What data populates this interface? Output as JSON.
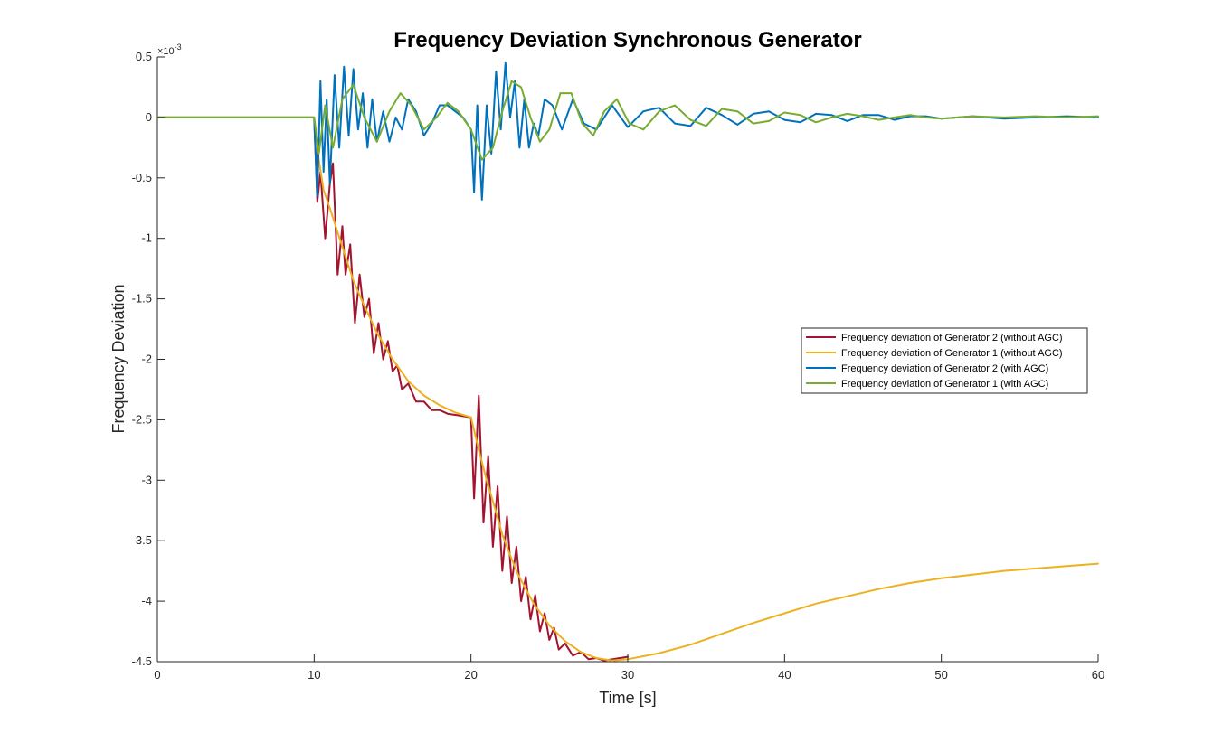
{
  "chart_data": {
    "type": "line",
    "title": "Frequency Deviation Synchronous Generator",
    "xlabel": "Time [s]",
    "ylabel": "Frequency Deviation",
    "y_multiplier": "×10",
    "y_multiplier_exp": "-3",
    "xlim": [
      0,
      60
    ],
    "ylim": [
      -4.5,
      0.5
    ],
    "x_ticks": [
      "0",
      "10",
      "20",
      "30",
      "40",
      "50",
      "60"
    ],
    "y_ticks": [
      "0.5",
      "0",
      "-0.5",
      "-1",
      "-1.5",
      "-2",
      "-2.5",
      "-3",
      "-3.5",
      "-4",
      "-4.5"
    ],
    "grid": false,
    "legend_position": "right",
    "series": [
      {
        "name": "Frequency deviation of Generator 2 (without AGC)",
        "color": "#A2142F",
        "x": [
          0,
          10,
          10.2,
          10.4,
          10.7,
          11.0,
          11.2,
          11.5,
          11.8,
          12.0,
          12.3,
          12.6,
          12.9,
          13.2,
          13.5,
          13.8,
          14.1,
          14.4,
          14.7,
          15.0,
          15.3,
          15.6,
          16.0,
          16.5,
          17.0,
          17.5,
          18.0,
          18.5,
          19.0,
          19.5,
          20.0,
          20.2,
          20.5,
          20.8,
          21.1,
          21.4,
          21.7,
          22.0,
          22.3,
          22.6,
          22.9,
          23.2,
          23.5,
          23.8,
          24.1,
          24.4,
          24.7,
          25.0,
          25.3,
          25.6,
          26.0,
          26.5,
          27.0,
          27.5,
          28.0,
          28.5,
          29.0,
          29.5,
          30.0
        ],
        "y": [
          0,
          0,
          -0.7,
          -0.45,
          -1.0,
          -0.55,
          -0.38,
          -1.3,
          -0.9,
          -1.3,
          -1.05,
          -1.7,
          -1.3,
          -1.65,
          -1.5,
          -1.95,
          -1.7,
          -2.0,
          -1.85,
          -2.1,
          -2.05,
          -2.25,
          -2.2,
          -2.35,
          -2.35,
          -2.42,
          -2.42,
          -2.45,
          -2.46,
          -2.47,
          -2.48,
          -3.15,
          -2.3,
          -3.35,
          -2.8,
          -3.55,
          -3.05,
          -3.75,
          -3.3,
          -3.85,
          -3.55,
          -4.0,
          -3.8,
          -4.15,
          -3.95,
          -4.25,
          -4.1,
          -4.32,
          -4.22,
          -4.4,
          -4.35,
          -4.45,
          -4.42,
          -4.48,
          -4.47,
          -4.49,
          -4.48,
          -4.47,
          -4.46
        ]
      },
      {
        "name": "Frequency deviation of Generator 1 (without AGC)",
        "color": "#EDB120",
        "x": [
          0,
          10,
          10.3,
          10.6,
          11,
          11.5,
          12,
          12.5,
          13,
          14,
          15,
          16,
          17,
          18,
          19,
          20,
          20.5,
          21,
          21.5,
          22,
          22.5,
          23,
          24,
          25,
          26,
          27,
          28,
          29,
          30,
          32,
          34,
          36,
          38,
          40,
          42,
          44,
          46,
          48,
          50,
          52,
          54,
          56,
          58,
          60
        ],
        "y": [
          0,
          0,
          -0.35,
          -0.6,
          -0.75,
          -0.95,
          -1.15,
          -1.35,
          -1.5,
          -1.78,
          -2.0,
          -2.18,
          -2.3,
          -2.38,
          -2.44,
          -2.48,
          -2.75,
          -3.0,
          -3.22,
          -3.45,
          -3.62,
          -3.78,
          -4.02,
          -4.2,
          -4.33,
          -4.42,
          -4.47,
          -4.49,
          -4.48,
          -4.43,
          -4.36,
          -4.27,
          -4.18,
          -4.1,
          -4.02,
          -3.96,
          -3.9,
          -3.85,
          -3.81,
          -3.78,
          -3.75,
          -3.73,
          -3.71,
          -3.69
        ]
      },
      {
        "name": "Frequency deviation of Generator 2 (with AGC)",
        "color": "#0072BD",
        "x": [
          0,
          10,
          10.2,
          10.4,
          10.6,
          10.8,
          11.0,
          11.3,
          11.6,
          11.9,
          12.2,
          12.5,
          12.8,
          13.1,
          13.4,
          13.7,
          14.0,
          14.4,
          14.8,
          15.2,
          15.6,
          16.0,
          16.5,
          17.0,
          17.5,
          18.0,
          18.5,
          19.0,
          19.5,
          20.0,
          20.2,
          20.4,
          20.7,
          21.0,
          21.3,
          21.6,
          21.9,
          22.2,
          22.5,
          22.8,
          23.1,
          23.4,
          23.7,
          24.0,
          24.3,
          24.7,
          25.2,
          25.8,
          26.5,
          27.2,
          28.0,
          29.0,
          30.0,
          31.0,
          32.0,
          33.0,
          34.0,
          35.0,
          36.0,
          37.0,
          38.0,
          39.0,
          40.0,
          41.0,
          42.0,
          43.0,
          44.0,
          45.0,
          46.0,
          47.0,
          48.0,
          49.0,
          50.0,
          52.0,
          54.0,
          56.0,
          58.0,
          60.0
        ],
        "y": [
          0,
          0,
          -0.65,
          0.3,
          -0.45,
          0.15,
          -0.55,
          0.35,
          -0.25,
          0.42,
          -0.15,
          0.4,
          -0.1,
          0.2,
          -0.25,
          0.15,
          -0.2,
          0.05,
          -0.2,
          0.0,
          -0.1,
          0.15,
          0.05,
          -0.15,
          -0.05,
          0.1,
          0.1,
          0.05,
          0.0,
          -0.1,
          -0.62,
          0.1,
          -0.68,
          0.1,
          -0.3,
          0.38,
          -0.1,
          0.45,
          0.0,
          0.3,
          -0.25,
          0.15,
          -0.25,
          -0.05,
          -0.15,
          0.15,
          0.1,
          -0.1,
          0.15,
          -0.05,
          -0.1,
          0.1,
          -0.08,
          0.05,
          0.08,
          -0.05,
          -0.07,
          0.08,
          0.02,
          -0.06,
          0.03,
          0.05,
          -0.02,
          -0.04,
          0.03,
          0.02,
          -0.03,
          0.02,
          0.02,
          -0.02,
          0.01,
          0.01,
          -0.01,
          0.01,
          -0.01,
          0.0,
          0.01,
          0.0
        ]
      },
      {
        "name": "Frequency deviation of Generator 1 (with AGC)",
        "color": "#77AC30",
        "x": [
          0,
          10,
          10.3,
          10.7,
          11.2,
          11.8,
          12.5,
          13.2,
          14.0,
          14.8,
          15.5,
          16.2,
          17.0,
          17.8,
          18.5,
          19.2,
          20.0,
          20.7,
          21.4,
          22.0,
          22.6,
          23.2,
          23.8,
          24.4,
          25.0,
          25.7,
          26.4,
          27.1,
          27.8,
          28.5,
          29.3,
          30.1,
          31.0,
          32.0,
          33.0,
          34.0,
          35.0,
          36.0,
          37.0,
          38.0,
          39.0,
          40.0,
          41.0,
          42.0,
          43.0,
          44.0,
          45.0,
          46.0,
          47.0,
          48.0,
          49.0,
          50.0,
          52.0,
          54.0,
          56.0,
          58.0,
          60.0
        ],
        "y": [
          0,
          0,
          -0.3,
          0.1,
          -0.25,
          0.15,
          0.27,
          0.0,
          -0.2,
          0.05,
          0.2,
          0.1,
          -0.1,
          0.0,
          0.12,
          0.05,
          -0.1,
          -0.35,
          -0.25,
          0.05,
          0.3,
          0.25,
          0.0,
          -0.2,
          -0.1,
          0.2,
          0.2,
          -0.05,
          -0.15,
          0.05,
          0.15,
          -0.05,
          -0.1,
          0.05,
          0.1,
          -0.02,
          -0.07,
          0.07,
          0.05,
          -0.05,
          -0.03,
          0.04,
          0.02,
          -0.04,
          0.0,
          0.03,
          0.01,
          -0.02,
          0.0,
          0.02,
          0.0,
          -0.01,
          0.01,
          0.0,
          0.01,
          0.0,
          0.01
        ]
      }
    ]
  }
}
